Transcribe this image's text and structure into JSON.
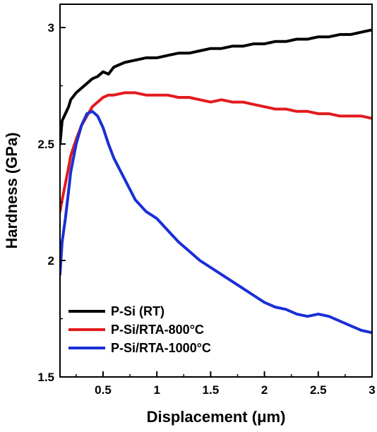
{
  "chart_data": {
    "type": "line",
    "xlabel": "Displacement (μm)",
    "ylabel": "Hardness (GPa)",
    "xlim": [
      0.1,
      3.0
    ],
    "ylim": [
      1.5,
      3.1
    ],
    "x_ticks": [
      0.5,
      1,
      1.5,
      2,
      2.5,
      3
    ],
    "x_tick_labels": [
      "0.5",
      "1",
      "1.5",
      "2",
      "2.5",
      "3"
    ],
    "y_ticks": [
      1.5,
      2,
      2.5,
      3
    ],
    "y_tick_labels": [
      "1.5",
      "2",
      "2.5",
      "3"
    ],
    "grid": false,
    "legend_position": "bottom-left",
    "series": [
      {
        "name": "P-Si (RT)",
        "color": "#000000",
        "x": [
          0.1,
          0.12,
          0.15,
          0.18,
          0.2,
          0.25,
          0.3,
          0.35,
          0.4,
          0.45,
          0.5,
          0.55,
          0.6,
          0.7,
          0.8,
          0.9,
          1.0,
          1.1,
          1.2,
          1.3,
          1.4,
          1.5,
          1.6,
          1.7,
          1.8,
          1.9,
          2.0,
          2.1,
          2.2,
          2.3,
          2.4,
          2.5,
          2.6,
          2.7,
          2.8,
          2.9,
          3.0
        ],
        "values": [
          2.5,
          2.6,
          2.63,
          2.66,
          2.69,
          2.72,
          2.74,
          2.76,
          2.78,
          2.79,
          2.81,
          2.8,
          2.83,
          2.85,
          2.86,
          2.87,
          2.87,
          2.88,
          2.89,
          2.89,
          2.9,
          2.91,
          2.91,
          2.92,
          2.92,
          2.93,
          2.93,
          2.94,
          2.94,
          2.95,
          2.95,
          2.96,
          2.96,
          2.97,
          2.97,
          2.98,
          2.99
        ]
      },
      {
        "name": "P-Si/RTA-800°C",
        "color": "#e31a1c",
        "x": [
          0.1,
          0.12,
          0.15,
          0.18,
          0.2,
          0.25,
          0.3,
          0.35,
          0.4,
          0.45,
          0.5,
          0.55,
          0.6,
          0.7,
          0.8,
          0.9,
          1.0,
          1.1,
          1.2,
          1.3,
          1.4,
          1.5,
          1.6,
          1.7,
          1.8,
          1.9,
          2.0,
          2.1,
          2.2,
          2.3,
          2.4,
          2.5,
          2.6,
          2.7,
          2.8,
          2.9,
          3.0
        ],
        "values": [
          2.21,
          2.26,
          2.33,
          2.4,
          2.45,
          2.52,
          2.58,
          2.62,
          2.66,
          2.68,
          2.7,
          2.71,
          2.71,
          2.72,
          2.72,
          2.71,
          2.71,
          2.71,
          2.7,
          2.7,
          2.69,
          2.68,
          2.69,
          2.68,
          2.68,
          2.67,
          2.66,
          2.65,
          2.65,
          2.64,
          2.64,
          2.63,
          2.63,
          2.62,
          2.62,
          2.62,
          2.61
        ]
      },
      {
        "name": "P-Si/RTA-1000°C",
        "color": "#1a2fd6",
        "x": [
          0.1,
          0.12,
          0.15,
          0.18,
          0.2,
          0.25,
          0.3,
          0.35,
          0.4,
          0.45,
          0.5,
          0.55,
          0.6,
          0.7,
          0.8,
          0.9,
          1.0,
          1.1,
          1.2,
          1.3,
          1.4,
          1.5,
          1.6,
          1.7,
          1.8,
          1.9,
          2.0,
          2.1,
          2.2,
          2.3,
          2.4,
          2.5,
          2.6,
          2.7,
          2.8,
          2.9,
          3.0
        ],
        "values": [
          1.94,
          2.08,
          2.18,
          2.3,
          2.38,
          2.5,
          2.58,
          2.63,
          2.64,
          2.62,
          2.57,
          2.5,
          2.44,
          2.35,
          2.26,
          2.21,
          2.18,
          2.13,
          2.08,
          2.04,
          2.0,
          1.97,
          1.94,
          1.91,
          1.88,
          1.85,
          1.82,
          1.8,
          1.79,
          1.77,
          1.76,
          1.77,
          1.76,
          1.74,
          1.72,
          1.7,
          1.69
        ]
      }
    ]
  }
}
